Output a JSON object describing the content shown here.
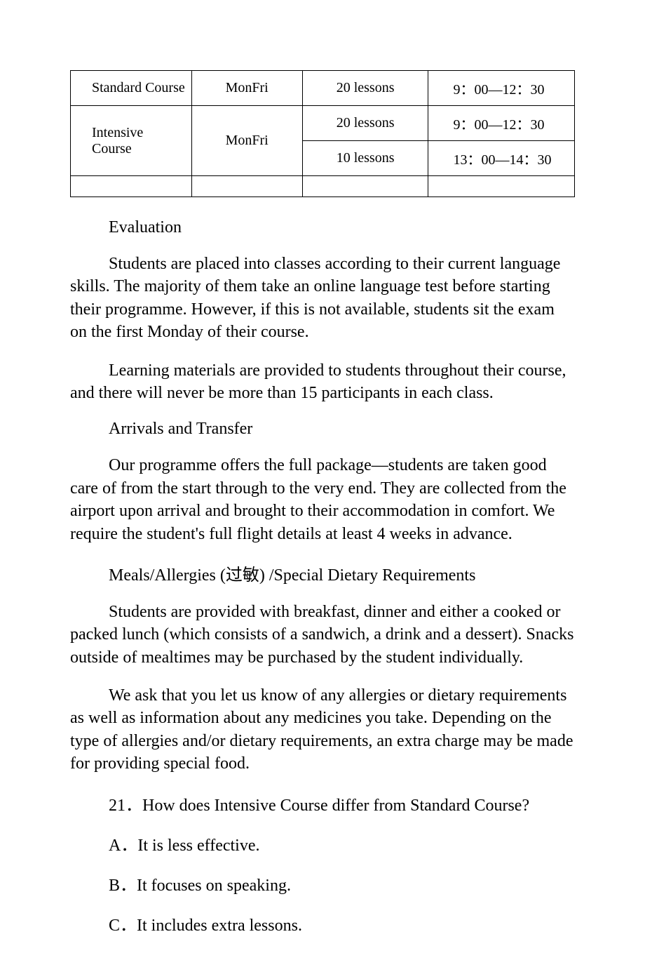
{
  "table": {
    "rows": [
      {
        "course": "Standard Course",
        "days": "MonFri",
        "lessons": "20 lessons",
        "time": "9：00—12：30"
      },
      {
        "course": "Intensive Course",
        "days": "MonFri",
        "lessons1": "20 lessons",
        "time1": "9：00—12：30",
        "lessons2": "10 lessons",
        "time2": "13：00—14：30"
      }
    ]
  },
  "sections": {
    "evaluation_heading": "Evaluation",
    "evaluation_p1": "Students are placed into classes according to their current language skills. The majority of them take an online language test before starting their programme. However, if this is not available, students sit the exam on the first Monday of their course.",
    "evaluation_p2": "Learning materials are provided to students throughout their course, and there will never be more than 15 participants in each class.",
    "arrivals_heading": "Arrivals and Transfer",
    "arrivals_p1": "Our programme offers the full package—students are taken good care of from the start through to the very end. They are collected from the airport upon arrival and brought to their accommodation in comfort. We require the student's full flight details at least 4 weeks in advance.",
    "meals_heading": "Meals/Allergies (过敏) /Special Dietary Requirements",
    "meals_p1": "Students are provided with breakfast, dinner and either a cooked or packed lunch (which consists of a sandwich, a drink and a dessert). Snacks outside of mealtimes may be purchased by the student individually.",
    "meals_p2": "We ask that you let us know of any allergies or dietary requirements as well as information about any medicines you take. Depending on the type of allergies and/or dietary requirements, an extra charge may be made for providing special food."
  },
  "question": {
    "number_text": "21．How does Intensive Course differ from Standard Course?",
    "options": {
      "a": "A．It is less effective.",
      "b": "B．It focuses on speaking.",
      "c": "C．It includes extra lessons."
    }
  }
}
